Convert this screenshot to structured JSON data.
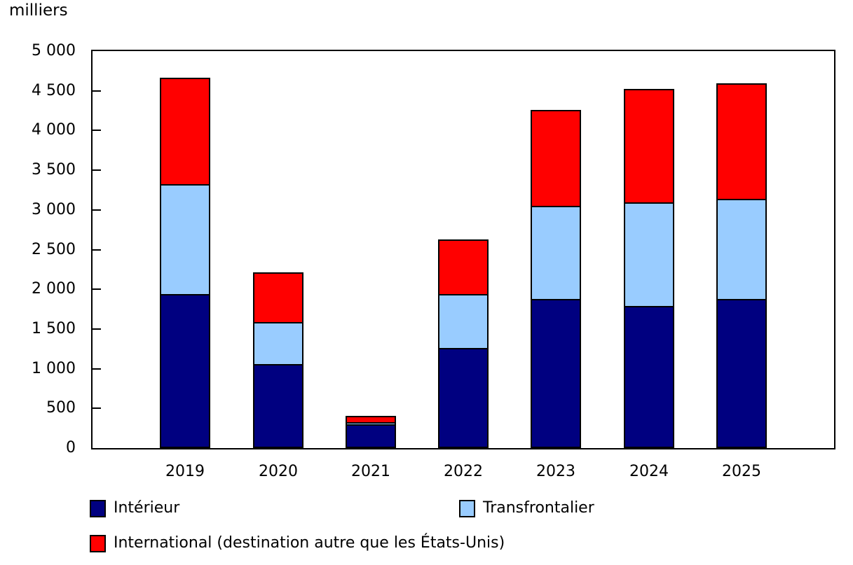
{
  "chart_data": {
    "type": "bar",
    "stacked": true,
    "unit_label": "milliers",
    "categories": [
      "2019",
      "2020",
      "2021",
      "2022",
      "2023",
      "2024",
      "2025"
    ],
    "series": [
      {
        "name": "Intérieur",
        "color": "#000080",
        "values": [
          1920,
          1045,
          280,
          1245,
          1860,
          1775,
          1860
        ]
      },
      {
        "name": "Transfrontalier",
        "color": "#99ccff",
        "values": [
          1390,
          525,
          30,
          675,
          1170,
          1300,
          1260
        ]
      },
      {
        "name": "International (destination autre que les États-Unis)",
        "color": "#ff0000",
        "values": [
          1320,
          605,
          65,
          670,
          1190,
          1410,
          1435
        ]
      }
    ],
    "totals": [
      4630,
      2175,
      375,
      2590,
      4220,
      4485,
      4555
    ],
    "ylim": [
      0,
      5000
    ],
    "ytick_step": 500,
    "ytick_labels": [
      "0",
      "500",
      "1 000",
      "1 500",
      "2 000",
      "2 500",
      "3 000",
      "3 500",
      "4 000",
      "4 500",
      "5 000"
    ],
    "grid": false,
    "legend_position": "bottom"
  },
  "legend": {
    "items": [
      {
        "label": "Intérieur",
        "color": "#000080"
      },
      {
        "label": "Transfrontalier",
        "color": "#99ccff"
      },
      {
        "label": "International (destination autre que les États-Unis)",
        "color": "#ff0000"
      }
    ]
  }
}
